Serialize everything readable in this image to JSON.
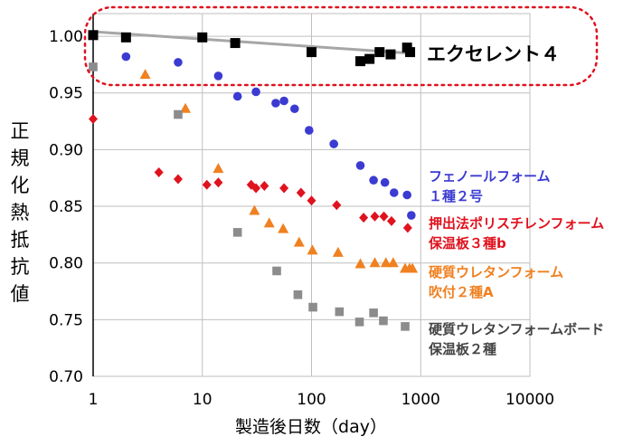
{
  "chart_data": {
    "type": "scatter",
    "title": "",
    "xlabel": "製造後日数（day）",
    "ylabel": "正規化熱抵抗値",
    "x_scale": "log",
    "xlim": [
      1,
      10000
    ],
    "ylim": [
      0.7,
      1.02
    ],
    "x_ticks": [
      "1",
      "10",
      "100",
      "1000",
      "10000"
    ],
    "y_ticks": [
      "0.70",
      "0.75",
      "0.80",
      "0.85",
      "0.90",
      "0.95",
      "1.00"
    ],
    "grid": true,
    "series": [
      {
        "name": "エクセレント４",
        "color": "#000000",
        "marker": "square",
        "x": [
          1,
          2,
          10,
          20,
          100,
          280,
          340,
          420,
          530,
          750,
          800
        ],
        "y": [
          1.001,
          0.999,
          0.999,
          0.994,
          0.986,
          0.978,
          0.98,
          0.986,
          0.984,
          0.99,
          0.986
        ]
      },
      {
        "name": "フェノールフォーム１種２号",
        "color": "#3b3bd2",
        "marker": "circle",
        "x": [
          2,
          6,
          14,
          21,
          31,
          47,
          56,
          70,
          95,
          160,
          280,
          370,
          470,
          570,
          750,
          820
        ],
        "y": [
          0.982,
          0.977,
          0.965,
          0.947,
          0.951,
          0.941,
          0.943,
          0.936,
          0.917,
          0.905,
          0.886,
          0.873,
          0.871,
          0.862,
          0.86,
          0.842
        ]
      },
      {
        "name": "押出法ポリスチレンフォーム保温板３種b",
        "color": "#e0121e",
        "marker": "diamond",
        "x": [
          1,
          4,
          6,
          11,
          14,
          28,
          31,
          37,
          56,
          80,
          100,
          170,
          300,
          380,
          460,
          540,
          760
        ],
        "y": [
          0.927,
          0.88,
          0.874,
          0.869,
          0.871,
          0.869,
          0.866,
          0.868,
          0.866,
          0.862,
          0.855,
          0.851,
          0.84,
          0.841,
          0.841,
          0.837,
          0.831
        ]
      },
      {
        "name": "硬質ウレタンフォーム吹付２種A",
        "color": "#f08020",
        "marker": "triangle",
        "x": [
          3,
          7,
          14,
          30,
          41,
          55,
          77,
          102,
          175,
          280,
          380,
          480,
          560,
          720,
          790,
          840
        ],
        "y": [
          0.966,
          0.936,
          0.883,
          0.846,
          0.835,
          0.83,
          0.818,
          0.811,
          0.809,
          0.799,
          0.8,
          0.8,
          0.8,
          0.795,
          0.795,
          0.795
        ]
      },
      {
        "name": "硬質ウレタンフォームボード保温板２種",
        "color": "#8c8c8c",
        "marker": "square",
        "x": [
          1,
          6,
          21,
          48,
          75,
          103,
          180,
          275,
          370,
          455,
          720
        ],
        "y": [
          0.973,
          0.931,
          0.827,
          0.793,
          0.772,
          0.761,
          0.757,
          0.748,
          0.756,
          0.749,
          0.744
        ]
      }
    ],
    "trendline": {
      "series": "エクセレント４",
      "color": "#a6a6a6",
      "x": [
        1,
        800
      ],
      "y": [
        1.004,
        0.985
      ]
    },
    "annotations": {
      "callout": {
        "text": "エクセレント４",
        "color": "#e0121e",
        "style": "dotted-rounded-box"
      },
      "legend_labels": [
        {
          "lines": [
            "フェノールフォーム",
            "１種２号"
          ],
          "color": "#3b3bd2"
        },
        {
          "lines": [
            "押出法ポリスチレンフォーム",
            "保温板３種b"
          ],
          "color": "#e0121e"
        },
        {
          "lines": [
            "硬質ウレタンフォーム",
            "吹付２種A"
          ],
          "color": "#f08020"
        },
        {
          "lines": [
            "硬質ウレタンフォームボード",
            "保温板２種"
          ],
          "color": "#444444"
        }
      ]
    }
  }
}
